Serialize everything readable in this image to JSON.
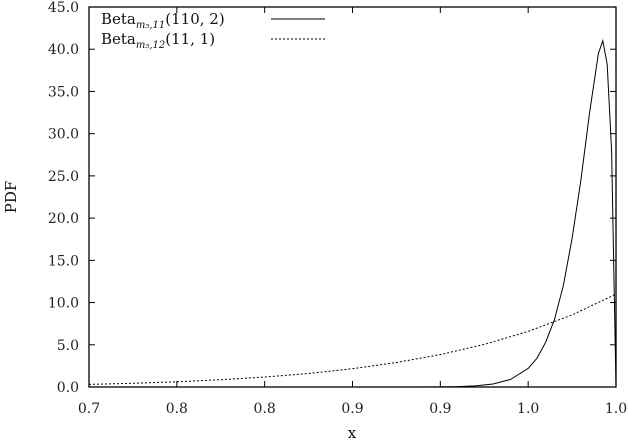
{
  "chart_data": {
    "type": "line",
    "title": "",
    "xlabel": "x",
    "ylabel": "PDF",
    "xlim": [
      0.7,
      1.0
    ],
    "ylim": [
      0,
      45
    ],
    "grid": false,
    "legend_position": "top-left",
    "x_ticks": [
      0.7,
      0.75,
      0.8,
      0.85,
      0.9,
      0.95,
      1.0
    ],
    "x_tick_labels": [
      "0.7",
      "0.8",
      "0.8",
      "0.9",
      "0.9",
      "1.0",
      "1.0"
    ],
    "y_ticks": [
      0,
      5,
      10,
      15,
      20,
      25,
      30,
      35,
      40,
      45
    ],
    "y_tick_labels": [
      "0.0",
      "5.0",
      "10.0",
      "15.0",
      "20.0",
      "25.0",
      "30.0",
      "35.0",
      "40.0",
      "45.0"
    ],
    "series": [
      {
        "name": "Beta_{m5,11}(110, 2)",
        "legend_main": "Beta",
        "legend_sub": "m₅,11",
        "legend_args": "(110, 2)",
        "style": "solid",
        "color": "#000000",
        "x": [
          0.7,
          0.85,
          0.88,
          0.9,
          0.91,
          0.92,
          0.93,
          0.94,
          0.95,
          0.955,
          0.96,
          0.965,
          0.97,
          0.975,
          0.98,
          0.985,
          0.99,
          0.9925,
          0.995,
          0.9975,
          1.0
        ],
        "values": [
          0.0,
          0.0,
          0.0,
          0.01,
          0.05,
          0.13,
          0.35,
          0.9,
          2.2,
          3.4,
          5.3,
          8.0,
          12.0,
          17.6,
          24.5,
          32.5,
          39.5,
          41.0,
          38.2,
          28.0,
          0.0
        ]
      },
      {
        "name": "Beta_{m5,12}(11, 1)",
        "legend_main": "Beta",
        "legend_sub": "m₅,12",
        "legend_args": "(11, 1)",
        "style": "dotted",
        "color": "#000000",
        "x": [
          0.7,
          0.725,
          0.75,
          0.775,
          0.8,
          0.825,
          0.85,
          0.875,
          0.9,
          0.925,
          0.95,
          0.975,
          1.0
        ],
        "values": [
          0.31,
          0.44,
          0.62,
          0.86,
          1.18,
          1.6,
          2.17,
          2.9,
          3.84,
          5.05,
          6.59,
          8.54,
          11.0
        ]
      }
    ]
  }
}
